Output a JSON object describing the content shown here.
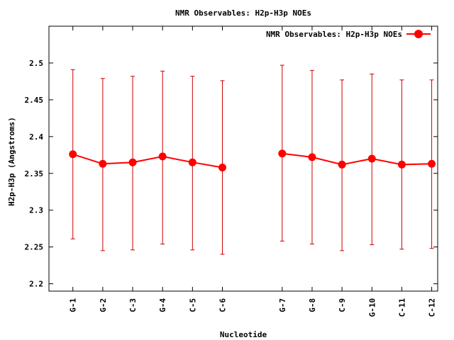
{
  "chart_data": {
    "type": "line",
    "title": "NMR Observables: H2p-H3p NOEs",
    "xlabel": "Nucleotide",
    "ylabel": "H2p-H3p (Angstroms)",
    "legend": {
      "label": "NMR Observables: H2p-H3p NOEs",
      "placement": "top-right"
    },
    "categories": [
      "G-1",
      "G-2",
      "C-3",
      "G-4",
      "C-5",
      "C-6",
      "G-7",
      "G-8",
      "C-9",
      "G-10",
      "C-11",
      "C-12"
    ],
    "x": [
      1,
      2,
      3,
      4,
      5,
      6,
      8,
      9,
      10,
      11,
      12,
      13
    ],
    "xlim": [
      0.2,
      13.2
    ],
    "ylim": [
      2.19,
      2.55
    ],
    "yticks": [
      2.2,
      2.25,
      2.3,
      2.35,
      2.4,
      2.45,
      2.5
    ],
    "ytick_labels": [
      "2.2",
      "2.25",
      "2.3",
      "2.35",
      "2.4",
      "2.45",
      "2.5"
    ],
    "grid": false,
    "color": "#ff0000",
    "errorbar_color": "#cc0000",
    "segments": [
      [
        0,
        5
      ],
      [
        6,
        11
      ]
    ],
    "series": [
      {
        "name": "NMR Observables: H2p-H3p NOEs",
        "values": [
          2.376,
          2.363,
          2.365,
          2.373,
          2.365,
          2.358,
          2.377,
          2.372,
          2.362,
          2.37,
          2.362,
          2.363
        ],
        "err_low": [
          2.261,
          2.245,
          2.246,
          2.254,
          2.246,
          2.24,
          2.258,
          2.254,
          2.245,
          2.253,
          2.247,
          2.248
        ],
        "err_high": [
          2.491,
          2.479,
          2.482,
          2.489,
          2.482,
          2.476,
          2.497,
          2.49,
          2.477,
          2.485,
          2.477,
          2.477
        ]
      }
    ]
  }
}
